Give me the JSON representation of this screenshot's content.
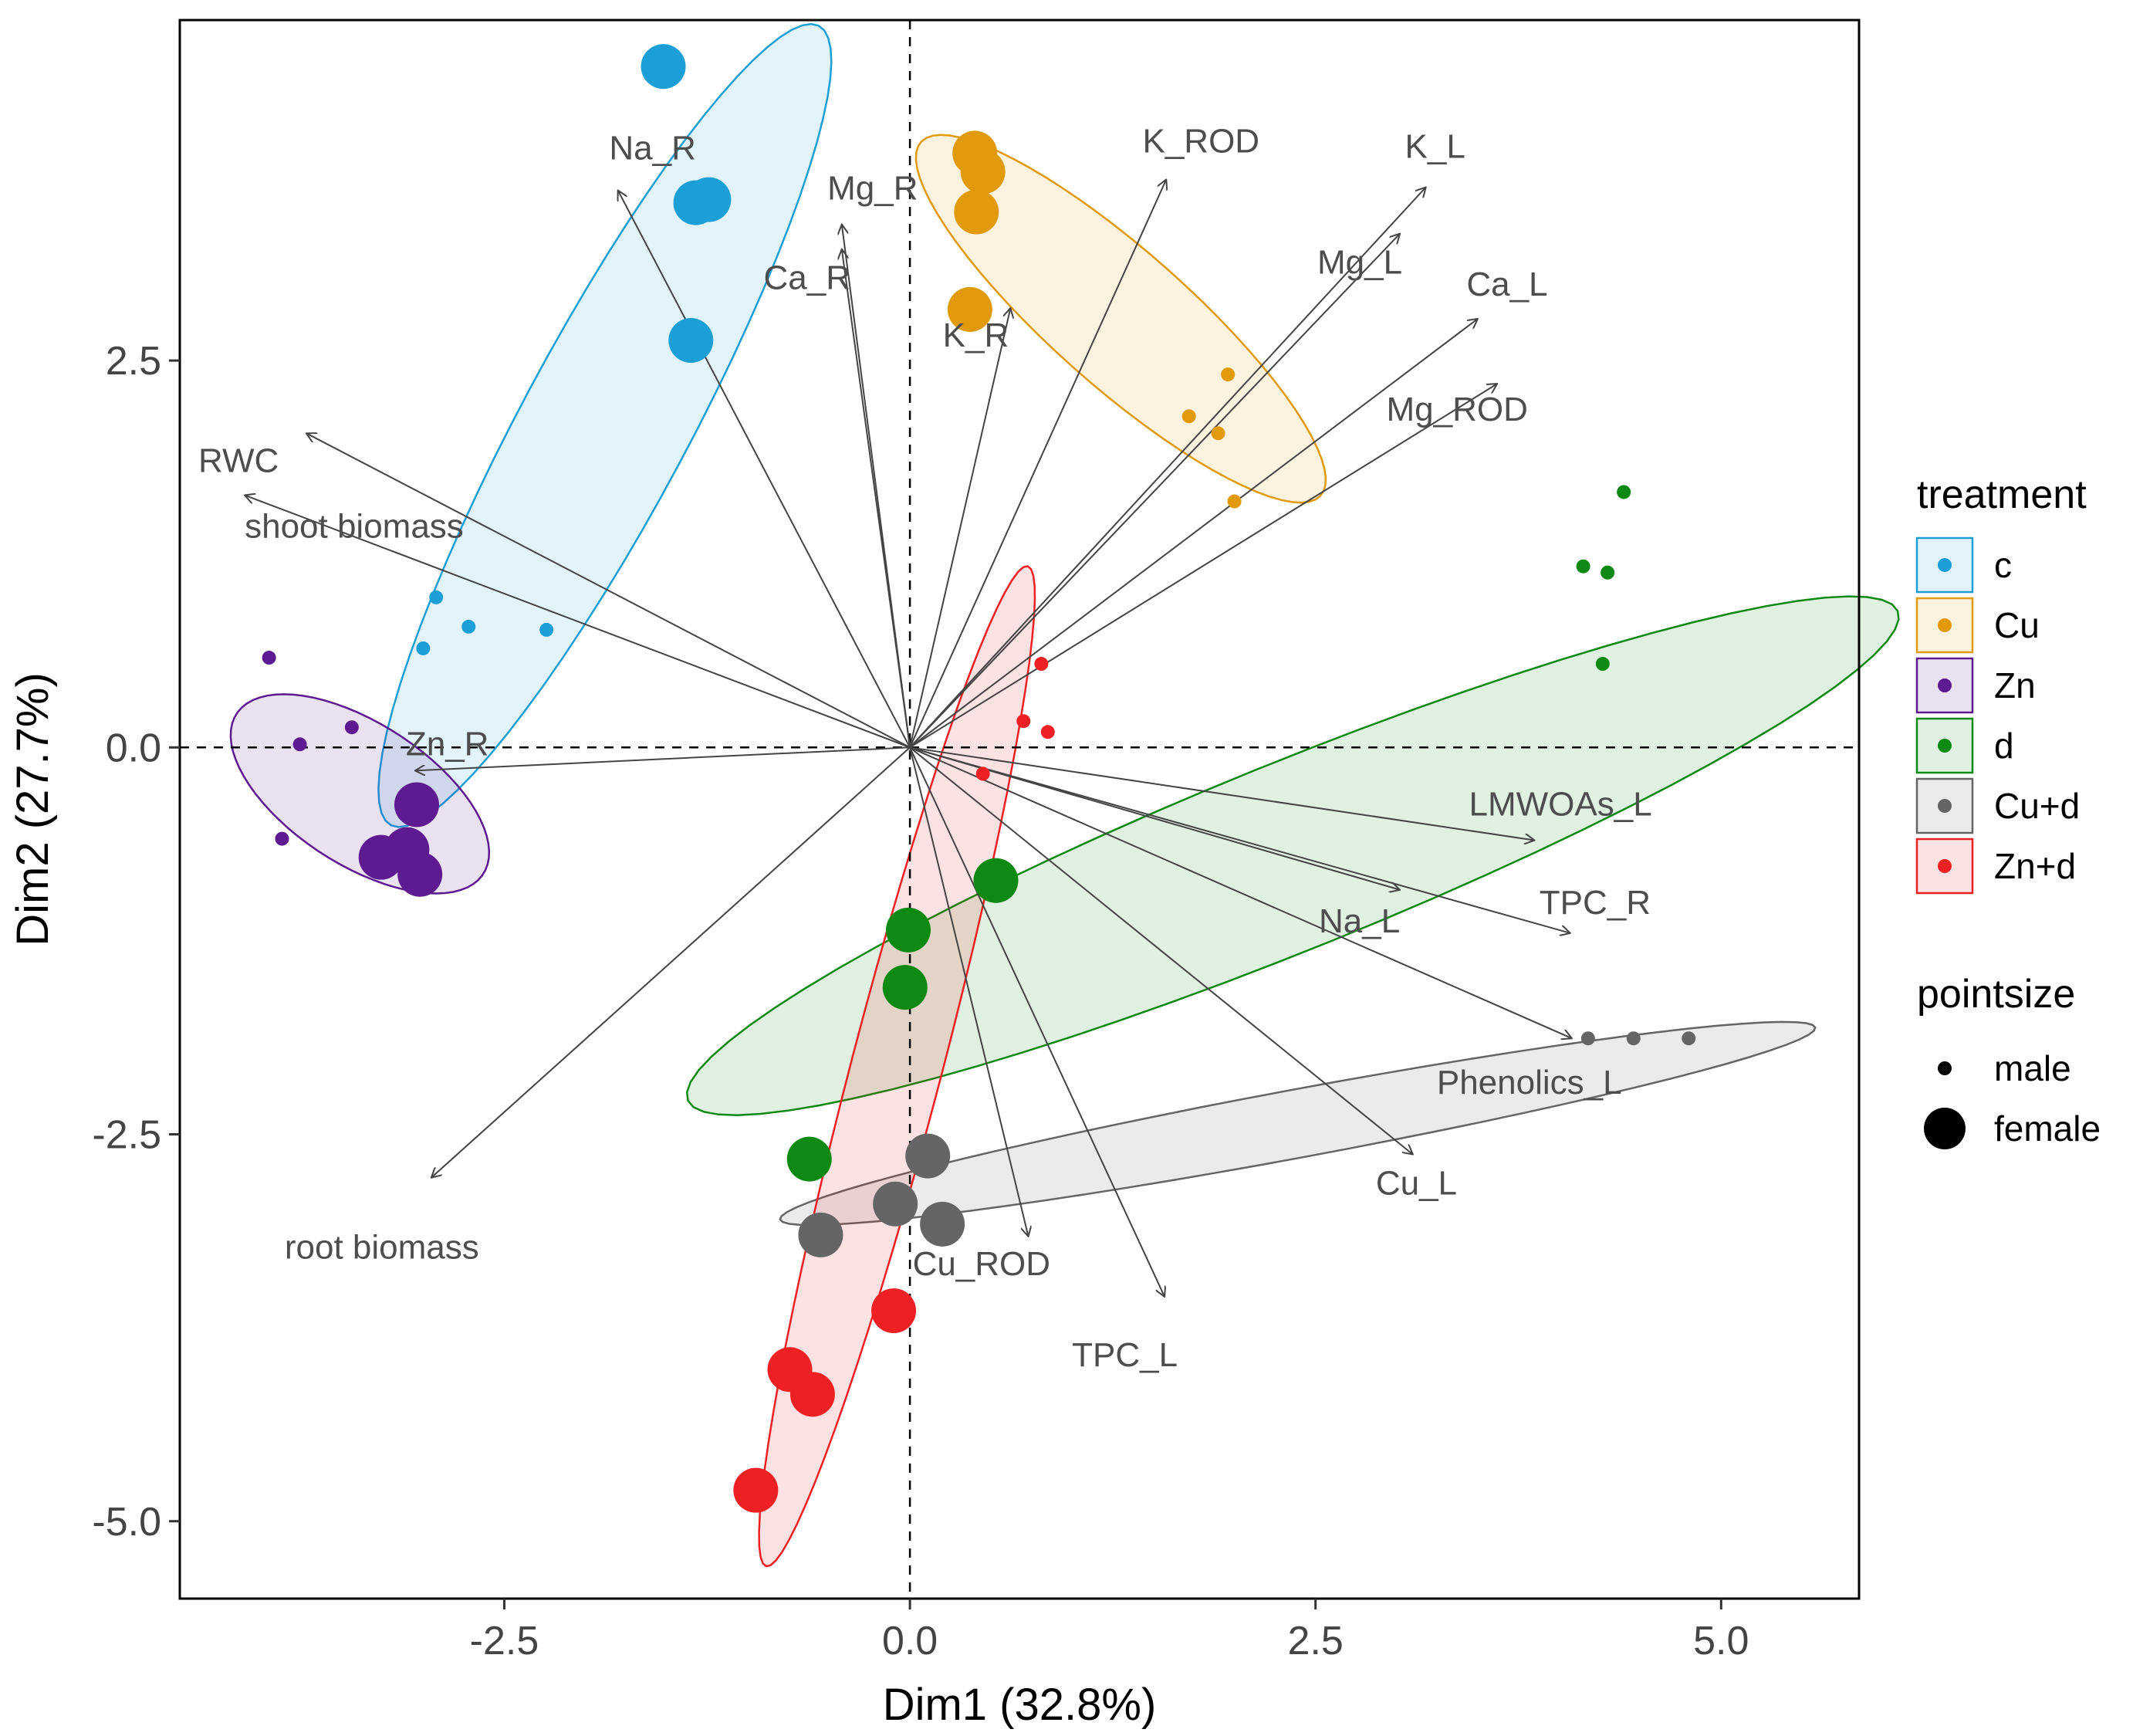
{
  "chart_data": {
    "type": "scatter",
    "subtype": "pca-biplot",
    "xlabel": "Dim1 (32.8%)",
    "ylabel": "Dim2 (27.7%)",
    "xlim": [
      -4.5,
      5.85
    ],
    "ylim": [
      -5.5,
      4.7
    ],
    "xticks": [
      -2.5,
      0.0,
      2.5,
      5.0
    ],
    "xtick_labels": [
      "-2.5",
      "0.0",
      "2.5",
      "5.0"
    ],
    "yticks": [
      -5.0,
      -2.5,
      0.0,
      2.5
    ],
    "ytick_labels": [
      "-5.0",
      "-2.5",
      "0.0",
      "2.5"
    ],
    "grid": false,
    "reference_lines": {
      "x": 0,
      "y": 0,
      "style": "dashed"
    },
    "legend": {
      "position": "right",
      "treatment_title": "treatment",
      "treatments": [
        {
          "name": "c",
          "color": "#1c9fd7"
        },
        {
          "name": "Cu",
          "color": "#e19a0b"
        },
        {
          "name": "Zn",
          "color": "#5e1a91"
        },
        {
          "name": "d",
          "color": "#0e8a14"
        },
        {
          "name": "Cu+d",
          "color": "#656565"
        },
        {
          "name": "Zn+d",
          "color": "#ee2024"
        }
      ],
      "pointsize_title": "pointsize",
      "pointsize": [
        {
          "name": "male",
          "size": "small"
        },
        {
          "name": "female",
          "size": "large"
        }
      ]
    },
    "series": [
      {
        "name": "c",
        "male": [
          [
            -2.92,
            0.97
          ],
          [
            -2.72,
            0.78
          ],
          [
            -3.0,
            0.64
          ],
          [
            -2.24,
            0.76
          ]
        ],
        "female": [
          [
            -1.52,
            4.4
          ],
          [
            -1.32,
            3.52
          ],
          [
            -1.24,
            3.54
          ],
          [
            -1.35,
            2.63
          ]
        ],
        "ellipse": {
          "cx": -1.88,
          "cy": 2.08,
          "rx": 2.9,
          "ry": 0.52,
          "angle": 63
        }
      },
      {
        "name": "Cu",
        "male": [
          [
            1.96,
            2.41
          ],
          [
            1.72,
            2.14
          ],
          [
            1.9,
            2.03
          ],
          [
            2.0,
            1.59
          ]
        ],
        "female": [
          [
            0.4,
            3.84
          ],
          [
            0.45,
            3.72
          ],
          [
            0.41,
            3.46
          ],
          [
            0.37,
            2.83
          ]
        ],
        "ellipse": {
          "cx": 1.3,
          "cy": 2.77,
          "rx": 1.68,
          "ry": 0.43,
          "angle": -43
        }
      },
      {
        "name": "Zn",
        "male": [
          [
            -3.95,
            0.58
          ],
          [
            -3.76,
            0.02
          ],
          [
            -3.44,
            0.13
          ],
          [
            -3.87,
            -0.59
          ]
        ],
        "female": [
          [
            -3.04,
            -0.37
          ],
          [
            -3.26,
            -0.71
          ],
          [
            -3.1,
            -0.66
          ],
          [
            -3.02,
            -0.82
          ]
        ],
        "ellipse": {
          "cx": -3.39,
          "cy": -0.3,
          "rx": 0.92,
          "ry": 0.45,
          "angle": -35
        }
      },
      {
        "name": "d",
        "male": [
          [
            4.4,
            1.65
          ],
          [
            4.15,
            1.17
          ],
          [
            4.3,
            1.13
          ],
          [
            4.27,
            0.54
          ]
        ],
        "female": [
          [
            0.53,
            -0.86
          ],
          [
            -0.01,
            -1.18
          ],
          [
            -0.03,
            -1.55
          ],
          [
            -0.62,
            -2.66
          ]
        ],
        "ellipse": {
          "cx": 2.36,
          "cy": -0.7,
          "rx": 4.05,
          "ry": 0.6,
          "angle": 23
        }
      },
      {
        "name": "Cu+d",
        "male": [
          [
            4.18,
            -1.88
          ],
          [
            4.46,
            -1.88
          ],
          [
            4.8,
            -1.88
          ]
        ],
        "female": [
          [
            0.11,
            -2.64
          ],
          [
            -0.09,
            -2.95
          ],
          [
            0.2,
            -3.08
          ],
          [
            -0.55,
            -3.15
          ]
        ],
        "ellipse": {
          "cx": 2.39,
          "cy": -2.43,
          "rx": 3.25,
          "ry": 0.22,
          "angle": 11
        }
      },
      {
        "name": "Zn+d",
        "male": [
          [
            0.81,
            0.54
          ],
          [
            0.7,
            0.17
          ],
          [
            0.85,
            0.1
          ],
          [
            0.45,
            -0.17
          ]
        ],
        "female": [
          [
            -0.1,
            -3.64
          ],
          [
            -0.74,
            -4.02
          ],
          [
            -0.6,
            -4.18
          ],
          [
            -0.95,
            -4.8
          ]
        ],
        "ellipse": {
          "cx": -0.08,
          "cy": -2.06,
          "rx": 3.33,
          "ry": 0.28,
          "angle": 76
        }
      }
    ],
    "variables": [
      {
        "name": "Na_R",
        "x": -1.8,
        "y": 3.6
      },
      {
        "name": "Mg_R",
        "x": -0.42,
        "y": 3.38
      },
      {
        "name": "Ca_R",
        "x": -0.42,
        "y": 3.22
      },
      {
        "name": "K_R",
        "x": 0.62,
        "y": 2.84
      },
      {
        "name": "K_ROD",
        "x": 1.58,
        "y": 3.67
      },
      {
        "name": "K_L",
        "x": 3.18,
        "y": 3.62
      },
      {
        "name": "Mg_L",
        "x": 3.02,
        "y": 3.32
      },
      {
        "name": "Ca_L",
        "x": 3.5,
        "y": 2.77
      },
      {
        "name": "Mg_ROD",
        "x": 3.62,
        "y": 2.35
      },
      {
        "name": "RWC",
        "x": -3.72,
        "y": 2.03
      },
      {
        "name": "shoot biomass",
        "x": -4.1,
        "y": 1.63
      },
      {
        "name": "Zn_R",
        "x": -3.05,
        "y": -0.15
      },
      {
        "name": "root biomass",
        "x": -2.95,
        "y": -2.78
      },
      {
        "name": "LMWOAs_L",
        "x": 3.85,
        "y": -0.6
      },
      {
        "name": "Na_L",
        "x": 3.02,
        "y": -0.92
      },
      {
        "name": "TPC_R",
        "x": 4.07,
        "y": -1.2
      },
      {
        "name": "Phenolics_L",
        "x": 4.08,
        "y": -1.88
      },
      {
        "name": "Cu_L",
        "x": 3.1,
        "y": -2.63
      },
      {
        "name": "Cu_ROD",
        "x": 0.73,
        "y": -3.16
      },
      {
        "name": "TPC_L",
        "x": 1.57,
        "y": -3.55
      }
    ]
  }
}
